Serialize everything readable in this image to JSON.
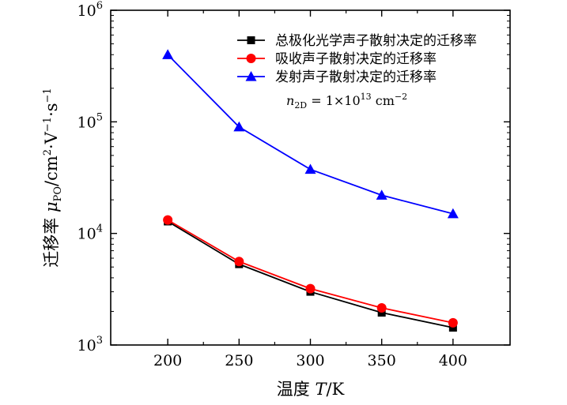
{
  "chart_data": {
    "type": "line",
    "x": [
      200,
      250,
      300,
      350,
      400
    ],
    "xlim": [
      160,
      440
    ],
    "ylim": [
      1000,
      1000000
    ],
    "y_scale": "log",
    "xticks": [
      "200",
      "250",
      "300",
      "350",
      "400"
    ],
    "yticks": [
      {
        "base": "10",
        "exp": "3",
        "value": 1000
      },
      {
        "base": "10",
        "exp": "4",
        "value": 10000
      },
      {
        "base": "10",
        "exp": "5",
        "value": 100000
      },
      {
        "base": "10",
        "exp": "6",
        "value": 1000000
      }
    ],
    "xlabel": {
      "prefix": "温度 ",
      "var": "T",
      "suffix": "/K"
    },
    "ylabel": {
      "prefix": "迁移率 ",
      "var": "μ",
      "sub": "PO",
      "unit": "/cm",
      "unit_sup": "2",
      "unit2": "·V",
      "unit2_sup": "−1",
      "unit3": "·s",
      "unit3_sup": "−1"
    },
    "grid": false,
    "legend_position": "top-right",
    "annotation": {
      "var": "n",
      "sub": "2D",
      "eq": " = 1×10",
      "sup": "13",
      "unit": " cm",
      "unit_sup": "−2"
    },
    "series": [
      {
        "name": "总极化光学声子散射决定的迁移率",
        "color": "#000000",
        "marker": "square",
        "values": [
          12800,
          5300,
          3000,
          1950,
          1430
        ]
      },
      {
        "name": "吸收声子散射决定的迁移率",
        "color": "#ff0000",
        "marker": "circle",
        "values": [
          13200,
          5600,
          3200,
          2150,
          1580
        ]
      },
      {
        "name": "发射声子散射决定的迁移率",
        "color": "#0000ff",
        "marker": "triangle",
        "values": [
          400000,
          90000,
          37500,
          22000,
          15000
        ]
      }
    ]
  }
}
